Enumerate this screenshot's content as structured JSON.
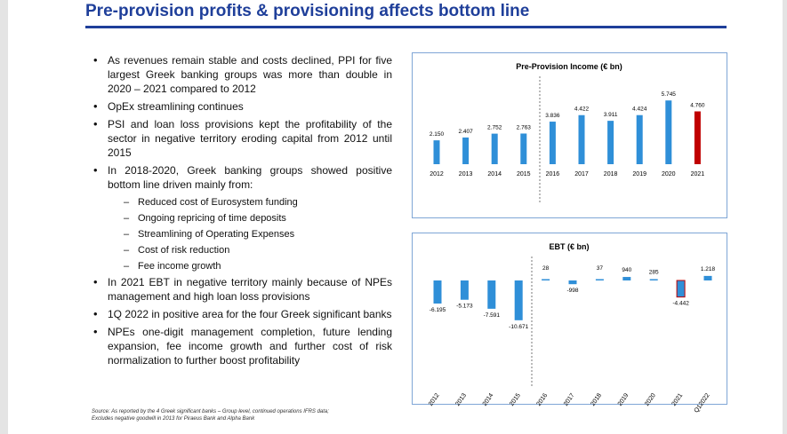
{
  "title": "Pre-provision profits & provisioning affects bottom line",
  "bullets": [
    {
      "level": 1,
      "text": "As revenues remain stable and costs declined, PPI for five largest Greek banking groups was more than double in 2020 – 2021 compared to 2012"
    },
    {
      "level": 1,
      "text": "OpEx streamlining continues"
    },
    {
      "level": 1,
      "text": "PSI and loan loss provisions kept the profitability of the sector in negative territory eroding capital from 2012 until 2015"
    },
    {
      "level": 1,
      "text": "In 2018-2020, Greek banking groups showed positive bottom line driven mainly from:"
    },
    {
      "level": 2,
      "text": "Reduced cost of Eurosystem funding"
    },
    {
      "level": 2,
      "text": "Ongoing repricing of time deposits"
    },
    {
      "level": 2,
      "text": "Streamlining of Operating Expenses"
    },
    {
      "level": 2,
      "text": "Cost of risk reduction"
    },
    {
      "level": 2,
      "text": "Fee income growth"
    },
    {
      "level": 1,
      "text": "In 2021 EBT in negative territory mainly because of NPEs management and high loan loss provisions"
    },
    {
      "level": 1,
      "text": "1Q 2022 in positive area for the four Greek significant banks"
    },
    {
      "level": 1,
      "text": "NPEs one-digit management completion, future lending expansion, fee income growth and further cost of risk normalization to further boost profitability"
    }
  ],
  "source_line1": "Source: As reported by the 4 Greek significant banks – Group level, continued operations IFRS data;",
  "source_line2": "Excludes negative goodwill in 2013 for Piraeus Bank and Alpha Bank",
  "colors": {
    "title": "#1f3f9a",
    "bar": "#2f8fd8",
    "highlight": "#c00000",
    "panel_border": "#7fa6d6"
  },
  "chart_data": [
    {
      "type": "bar",
      "title": "Pre-Provision Income (€ bn)",
      "categories": [
        "2012",
        "2013",
        "2014",
        "2015",
        "2016",
        "2017",
        "2018",
        "2019",
        "2020",
        "2021"
      ],
      "values": [
        2.15,
        2.407,
        2.752,
        2.763,
        3.836,
        4.422,
        3.911,
        4.424,
        5.745,
        4.76
      ],
      "labels": [
        "2.150",
        "2.407",
        "2.752",
        "2.763",
        "3.836",
        "4.422",
        "3.911",
        "4.424",
        "5.745",
        "4.760"
      ],
      "highlight": "2021",
      "grid": false
    },
    {
      "type": "bar",
      "title": "EBT (€ bn)",
      "categories": [
        "2012",
        "2013",
        "2014",
        "2015",
        "2016",
        "2017",
        "2018",
        "2019",
        "2020",
        "2021",
        "Q12022"
      ],
      "values": [
        -6.195,
        -5.173,
        -7.591,
        -10.671,
        0.028,
        -0.998,
        0.037,
        0.94,
        0.285,
        -4.442,
        1.218
      ],
      "labels": [
        "-6.195",
        "-5.173",
        "-7.591",
        "-10.671",
        "28",
        "-998",
        "37",
        "940",
        "285",
        "-4.442",
        "1.218"
      ],
      "highlight": "2021",
      "grid": false
    }
  ]
}
